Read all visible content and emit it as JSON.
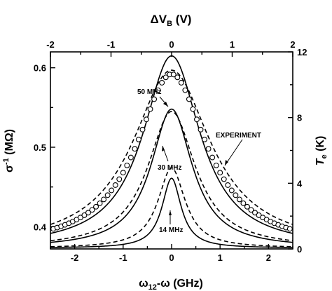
{
  "chart_data": {
    "type": "line",
    "title": "",
    "axes": {
      "bottom": {
        "label_main": "ω",
        "label_sub": "12",
        "label_rest": "-ω (GHz)",
        "range": [
          -2.5,
          2.5
        ],
        "ticks": [
          -2,
          -1,
          0,
          1,
          2
        ],
        "tick_labels": [
          "-2",
          "-1",
          "0",
          "1",
          "2"
        ]
      },
      "top": {
        "label_main": "ΔV",
        "label_sub": "B",
        "label_rest": " (V)",
        "range": [
          -2,
          2
        ],
        "ticks": [
          -2,
          -1,
          0,
          1,
          2
        ],
        "tick_labels": [
          "-2",
          "-1",
          "0",
          "1",
          "2"
        ]
      },
      "left": {
        "label_main": "σ",
        "label_sup": "-1",
        "label_rest": " (MΩ)",
        "range": [
          0.372,
          0.62
        ],
        "ticks": [
          0.4,
          0.5,
          0.6
        ],
        "tick_labels": [
          "0.4",
          "0.5",
          "0.6"
        ]
      },
      "right": {
        "label_main": "T",
        "label_sub": "e",
        "label_rest": " (K)",
        "range": [
          0,
          12
        ],
        "ticks": [
          0,
          4,
          8,
          12
        ],
        "tick_labels": [
          "0",
          "4",
          "8",
          "12"
        ]
      }
    },
    "series": [
      {
        "style": "solid",
        "baseline": 0.373,
        "peak": 0.615,
        "width": 0.72
      },
      {
        "style": "dashed",
        "baseline": 0.373,
        "peak": 0.597,
        "width": 0.98
      },
      {
        "style": "solid",
        "baseline": 0.373,
        "peak": 0.548,
        "width": 0.52
      },
      {
        "style": "dashed",
        "baseline": 0.373,
        "peak": 0.545,
        "width": 0.6
      },
      {
        "style": "dashed",
        "baseline": 0.373,
        "peak": 0.474,
        "width": 0.34
      },
      {
        "style": "solid",
        "baseline": 0.373,
        "peak": 0.461,
        "width": 0.24
      },
      {
        "style": "circles",
        "baseline": 0.372,
        "peak": 0.592,
        "width": 0.88,
        "x_step": 0.08
      }
    ],
    "annotations": [
      {
        "text": "50 MHz"
      },
      {
        "text": "30 MHz"
      },
      {
        "text": "14 MHz"
      },
      {
        "text": "EXPERIMENT"
      }
    ]
  }
}
